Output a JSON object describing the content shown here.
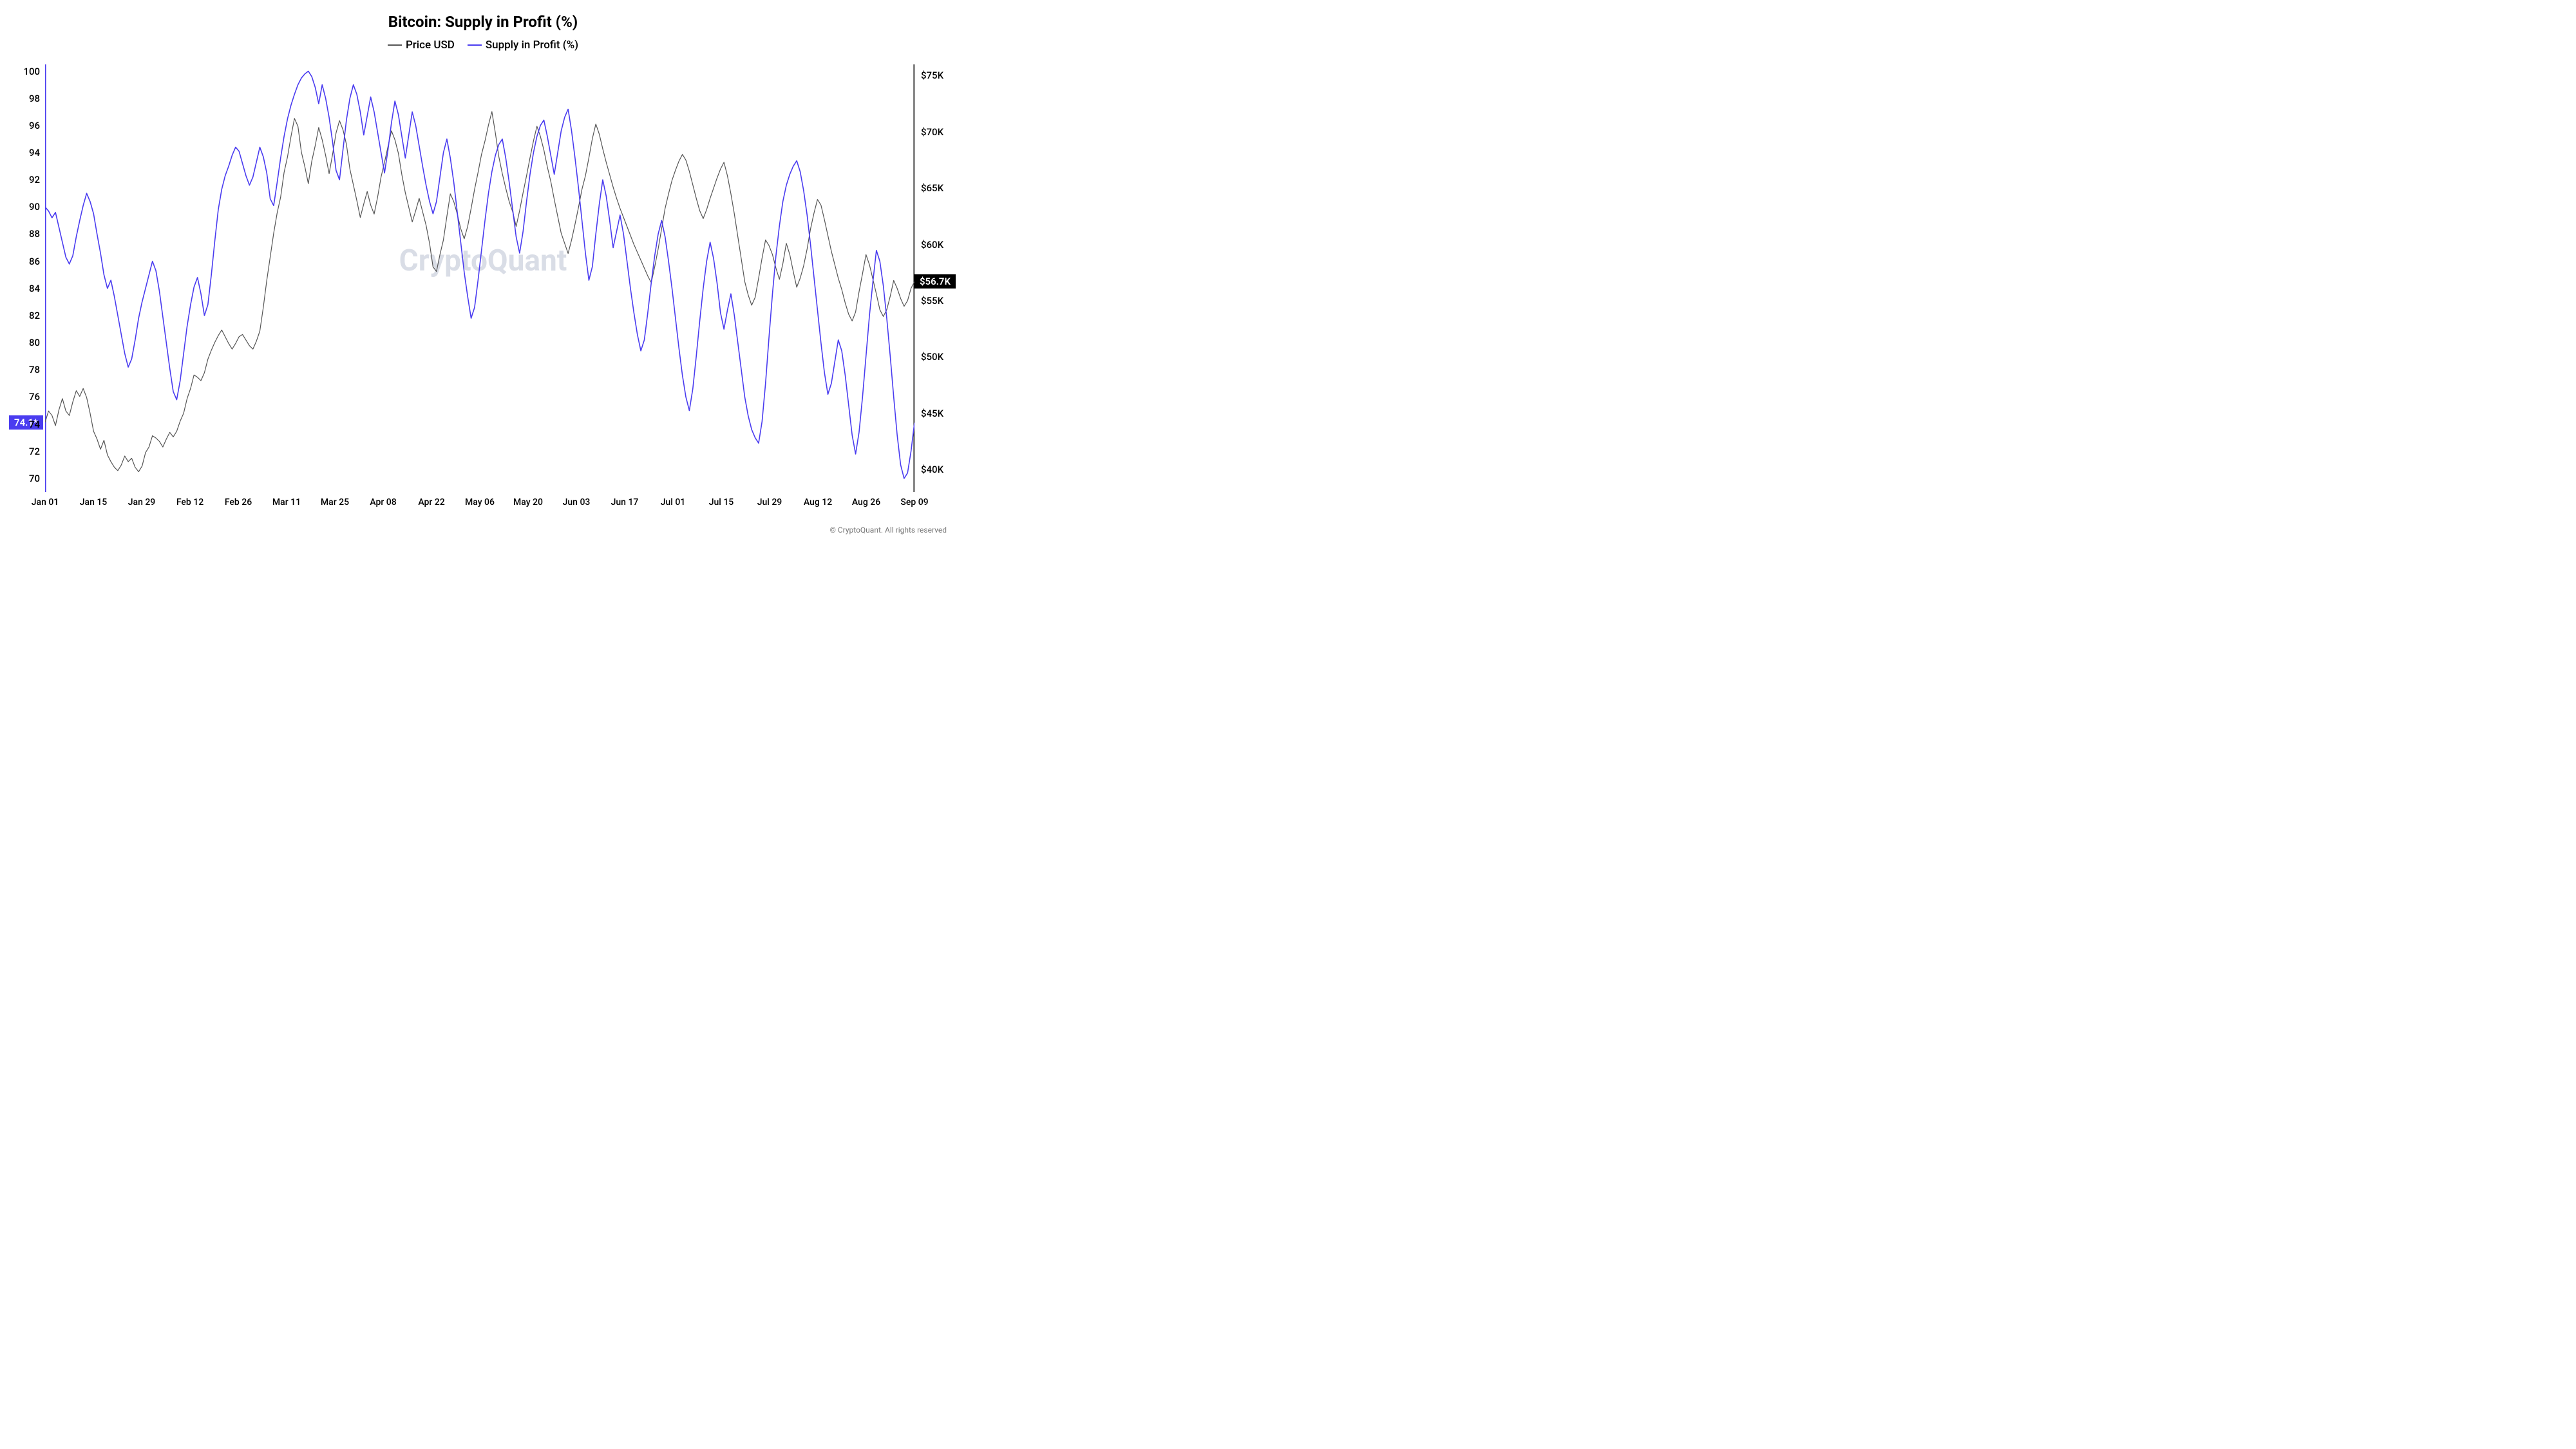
{
  "title": "Bitcoin: Supply in Profit (%)",
  "title_fontsize": 24,
  "legend": [
    {
      "label": "Price USD",
      "color": "#555555",
      "width": 1.2
    },
    {
      "label": "Supply in Profit (%)",
      "color": "#4a3cf0",
      "width": 1.6
    }
  ],
  "legend_fontsize": 17,
  "watermark": {
    "text": "CryptoQuant",
    "color": "#d9dde6",
    "fontsize": 46
  },
  "copyright": "© CryptoQuant. All rights reserved",
  "left_axis": {
    "min": 69,
    "max": 100.5,
    "ticks": [
      70,
      72,
      74,
      76,
      78,
      80,
      82,
      84,
      86,
      88,
      90,
      92,
      94,
      96,
      98,
      100
    ],
    "fontsize": 15,
    "indicator_color": "#4a3cf0"
  },
  "right_axis": {
    "min": 38000,
    "max": 76000,
    "ticks": [
      40000,
      45000,
      50000,
      55000,
      60000,
      65000,
      70000,
      75000
    ],
    "tick_labels": [
      "$40K",
      "$45K",
      "$50K",
      "$55K",
      "$60K",
      "$65K",
      "$70K",
      "$75K"
    ],
    "fontsize": 15,
    "indicator_color": "#000000"
  },
  "x_axis": {
    "labels": [
      "Jan 01",
      "Jan 15",
      "Jan 29",
      "Feb 12",
      "Feb 26",
      "Mar 11",
      "Mar 25",
      "Apr 08",
      "Apr 22",
      "May 06",
      "May 20",
      "Jun 03",
      "Jun 17",
      "Jul 01",
      "Jul 15",
      "Jul 29",
      "Aug 12",
      "Aug 26",
      "Sep 09"
    ],
    "fontsize": 14
  },
  "current_left": {
    "value": 74.1,
    "label": "74.1*"
  },
  "current_right": {
    "value": 56700,
    "label": "$56.7K"
  },
  "line_stroke_width": {
    "price": 1.2,
    "supply": 1.6
  },
  "background_color": "#ffffff",
  "series_price": [
    44200,
    45200,
    44800,
    43900,
    45300,
    46300,
    45200,
    44800,
    46000,
    47000,
    46500,
    47200,
    46400,
    45000,
    43400,
    42700,
    41800,
    42600,
    41300,
    40700,
    40200,
    39900,
    40400,
    41200,
    40700,
    41000,
    40200,
    39800,
    40300,
    41500,
    42000,
    43000,
    42800,
    42500,
    42000,
    42700,
    43300,
    42900,
    43400,
    44300,
    45000,
    46300,
    47200,
    48400,
    48200,
    47900,
    48600,
    49800,
    50600,
    51300,
    51900,
    52400,
    51800,
    51200,
    50700,
    51200,
    51800,
    52000,
    51500,
    51000,
    50700,
    51400,
    52300,
    54400,
    56800,
    58900,
    61000,
    62800,
    64200,
    66400,
    67800,
    69600,
    71200,
    70500,
    68200,
    66900,
    65400,
    67400,
    68800,
    70400,
    69300,
    67900,
    66300,
    68000,
    69900,
    71000,
    70200,
    68900,
    66700,
    65300,
    63900,
    62400,
    63600,
    64700,
    63500,
    62700,
    64200,
    66000,
    67300,
    68700,
    70100,
    69300,
    68100,
    66200,
    64600,
    63300,
    62000,
    63000,
    64100,
    62900,
    61700,
    60100,
    58000,
    57600,
    59100,
    60400,
    62500,
    64500,
    63800,
    62700,
    61400,
    60500,
    61600,
    63200,
    64900,
    66400,
    68000,
    69200,
    70600,
    71800,
    69900,
    67800,
    66300,
    65000,
    63800,
    62900,
    61600,
    63000,
    64600,
    66100,
    67700,
    69200,
    70500,
    69600,
    68400,
    66900,
    65600,
    64000,
    62500,
    61000,
    60100,
    59200,
    60400,
    61800,
    63300,
    64900,
    66100,
    67700,
    69400,
    70700,
    69800,
    68500,
    67300,
    66200,
    65100,
    64100,
    63200,
    62400,
    61600,
    60800,
    60000,
    59300,
    58600,
    57900,
    57200,
    56600,
    58000,
    59600,
    61400,
    63200,
    64500,
    65700,
    66600,
    67400,
    68000,
    67500,
    66500,
    65300,
    64100,
    63000,
    62300,
    63100,
    64100,
    65000,
    65900,
    66700,
    67300,
    66100,
    64500,
    62700,
    60700,
    58700,
    56700,
    55500,
    54600,
    55300,
    57000,
    58800,
    60400,
    59900,
    59100,
    57900,
    56900,
    58300,
    60100,
    59100,
    57600,
    56200,
    57000,
    58100,
    59600,
    61400,
    62800,
    64000,
    63500,
    62200,
    60800,
    59400,
    58200,
    57000,
    56000,
    54800,
    53800,
    53200,
    54000,
    55800,
    57400,
    59100,
    58200,
    56900,
    55600,
    54200,
    53600,
    54200,
    55400,
    56800,
    56100,
    55200,
    54500,
    55000,
    56100,
    56700
  ],
  "series_supply": [
    90.0,
    89.7,
    89.2,
    89.6,
    88.5,
    87.4,
    86.3,
    85.8,
    86.4,
    87.8,
    89.0,
    90.1,
    91.0,
    90.4,
    89.5,
    88.0,
    86.6,
    85.0,
    84.0,
    84.6,
    83.4,
    82.0,
    80.6,
    79.2,
    78.2,
    78.8,
    80.2,
    81.8,
    83.0,
    84.0,
    85.0,
    86.0,
    85.3,
    83.8,
    81.9,
    80.0,
    78.1,
    76.4,
    75.8,
    77.2,
    79.2,
    81.2,
    82.8,
    84.1,
    84.8,
    83.6,
    82.0,
    82.8,
    85.0,
    87.5,
    89.8,
    91.3,
    92.3,
    93.0,
    93.8,
    94.4,
    94.1,
    93.2,
    92.3,
    91.6,
    92.2,
    93.3,
    94.4,
    93.7,
    92.5,
    90.6,
    90.1,
    91.8,
    93.6,
    95.2,
    96.5,
    97.5,
    98.3,
    99.0,
    99.5,
    99.8,
    100.0,
    99.6,
    98.8,
    97.6,
    99.0,
    98.0,
    96.6,
    94.8,
    92.7,
    92.0,
    94.2,
    96.4,
    98.0,
    99.0,
    98.3,
    97.0,
    95.3,
    96.7,
    98.1,
    97.0,
    95.5,
    94.0,
    92.5,
    94.2,
    96.2,
    97.8,
    96.8,
    95.2,
    93.6,
    95.3,
    97.0,
    96.0,
    94.5,
    93.0,
    91.6,
    90.4,
    89.5,
    90.4,
    92.2,
    94.0,
    95.0,
    93.6,
    91.8,
    89.6,
    87.4,
    85.2,
    83.4,
    81.8,
    82.6,
    84.6,
    86.8,
    89.0,
    91.0,
    92.6,
    93.8,
    94.6,
    95.0,
    93.6,
    91.8,
    89.8,
    87.8,
    86.6,
    88.2,
    90.4,
    92.4,
    94.0,
    95.2,
    96.0,
    96.4,
    95.2,
    93.8,
    92.4,
    94.0,
    95.6,
    96.6,
    97.2,
    95.6,
    93.6,
    91.4,
    89.0,
    86.6,
    84.6,
    85.6,
    88.0,
    90.2,
    92.0,
    90.8,
    89.0,
    87.0,
    88.2,
    89.4,
    88.0,
    86.0,
    84.0,
    82.2,
    80.6,
    79.4,
    80.2,
    82.2,
    84.4,
    86.4,
    88.0,
    89.0,
    87.8,
    86.0,
    84.0,
    81.8,
    79.6,
    77.6,
    76.0,
    75.0,
    76.6,
    79.0,
    81.6,
    84.0,
    86.0,
    87.4,
    86.2,
    84.4,
    82.2,
    81.0,
    82.4,
    83.6,
    82.0,
    80.0,
    78.0,
    76.0,
    74.6,
    73.6,
    73.0,
    72.6,
    74.2,
    77.0,
    80.4,
    83.6,
    86.4,
    88.6,
    90.4,
    91.6,
    92.4,
    93.0,
    93.4,
    92.6,
    91.2,
    89.4,
    87.2,
    84.8,
    82.4,
    80.0,
    77.8,
    76.2,
    77.0,
    78.6,
    80.2,
    79.4,
    77.6,
    75.4,
    73.2,
    71.8,
    73.4,
    76.0,
    79.0,
    82.0,
    84.5,
    86.8,
    86.0,
    84.2,
    81.8,
    79.0,
    76.0,
    73.2,
    71.0,
    70.0,
    70.4,
    72.0,
    74.1
  ]
}
